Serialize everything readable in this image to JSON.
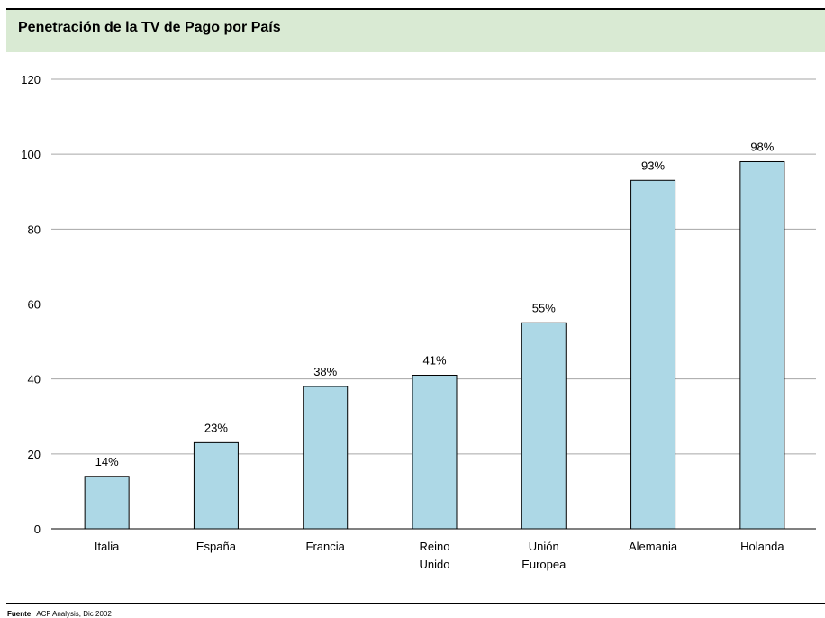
{
  "colors": {
    "title_background": "#d9ead3",
    "bar_fill": "#add8e6",
    "bar_stroke": "#000000",
    "grid": "#a6a6a6"
  },
  "footer": {
    "source_label": "Fuente",
    "source_text": "ACF Analysis, Dic 2002"
  },
  "chart_data": {
    "type": "bar",
    "title": "Penetración de la TV de Pago por País",
    "categories": [
      [
        "Italia"
      ],
      [
        "España"
      ],
      [
        "Francia"
      ],
      [
        "Reino",
        "Unido"
      ],
      [
        "Unión",
        "Europea"
      ],
      [
        "Alemania"
      ],
      [
        "Holanda"
      ]
    ],
    "values": [
      14,
      23,
      38,
      41,
      55,
      93,
      98
    ],
    "data_labels": [
      "14%",
      "23%",
      "38%",
      "41%",
      "55%",
      "93%",
      "98%"
    ],
    "yticks": [
      "0",
      "20",
      "40",
      "60",
      "80",
      "100",
      "120"
    ],
    "ylim": [
      0,
      120
    ],
    "grid": true,
    "legend": "none"
  }
}
